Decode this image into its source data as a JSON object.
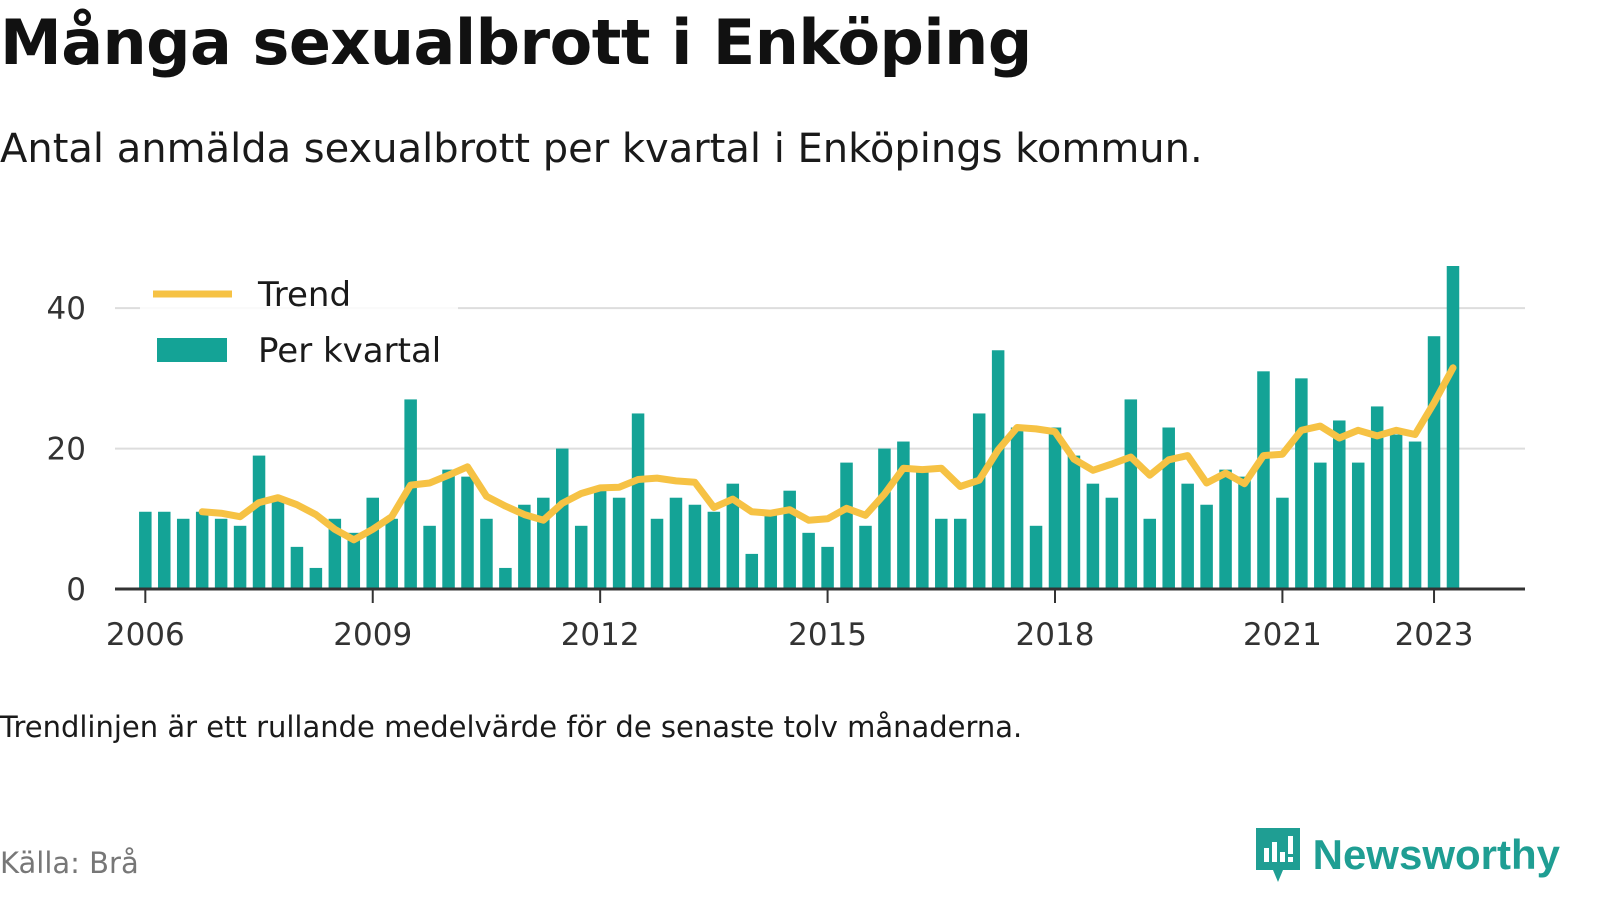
{
  "title": "Många sexualbrott i Enköping",
  "subtitle": "Antal anmälda sexualbrott per kvartal i Enköpings kommun.",
  "note": "Trendlinjen är ett rullande medelvärde för de senaste tolv månaderna.",
  "source": "Källa: Brå",
  "brand": {
    "name": "Newsworthy",
    "icon": "newsworthy-logo-icon",
    "color": "#1f9e93"
  },
  "colors": {
    "bars": "#14a396",
    "trend": "#f6c244",
    "grid": "#dddddd",
    "axis": "#333333",
    "tick_text": "#333333"
  },
  "chart_data": {
    "type": "bar",
    "x_unit": "year",
    "legend": {
      "placement": "top-left",
      "entries": [
        {
          "label": "Trend",
          "kind": "line"
        },
        {
          "label": "Per kvartal",
          "kind": "bar"
        }
      ]
    },
    "grid": true,
    "ylim": [
      0,
      46
    ],
    "y_ticks": [
      0,
      20,
      40
    ],
    "xlim": [
      2005.6,
      2024.2
    ],
    "x_ticks": [
      {
        "value": 2006,
        "label": "2006"
      },
      {
        "value": 2009,
        "label": "2009"
      },
      {
        "value": 2012,
        "label": "2012"
      },
      {
        "value": 2015,
        "label": "2015"
      },
      {
        "value": 2018,
        "label": "2018"
      },
      {
        "value": 2021,
        "label": "2021"
      },
      {
        "value": 2023,
        "label": "2023"
      }
    ],
    "start_year": 2006,
    "bar_series": {
      "name": "Per kvartal",
      "values": [
        11,
        11,
        10,
        11,
        10,
        9,
        19,
        13,
        6,
        3,
        10,
        8,
        13,
        10,
        27,
        9,
        17,
        16,
        10,
        3,
        12,
        13,
        20,
        9,
        14,
        13,
        25,
        10,
        13,
        12,
        11,
        15,
        5,
        11,
        14,
        8,
        6,
        18,
        9,
        20,
        21,
        17,
        10,
        10,
        25,
        34,
        23,
        9,
        23,
        19,
        15,
        13,
        27,
        10,
        23,
        15,
        12,
        17,
        16,
        31,
        13,
        30,
        18,
        24,
        18,
        26,
        22,
        21,
        36,
        46
      ]
    },
    "trend_series": {
      "name": "Trend",
      "values": [
        null,
        null,
        null,
        11.0,
        10.8,
        10.3,
        12.3,
        13.0,
        12.0,
        10.6,
        8.5,
        7.0,
        8.5,
        10.3,
        14.8,
        15.1,
        16.2,
        17.4,
        13.2,
        11.8,
        10.6,
        9.8,
        12.2,
        13.6,
        14.4,
        14.5,
        15.6,
        15.8,
        15.4,
        15.2,
        11.6,
        12.8,
        11.0,
        10.8,
        11.3,
        9.8,
        10.0,
        11.5,
        10.5,
        13.5,
        17.2,
        17.0,
        17.2,
        14.6,
        15.5,
        19.8,
        23.0,
        22.8,
        22.4,
        18.5,
        16.9,
        17.8,
        18.8,
        16.2,
        18.4,
        19.0,
        15.1,
        16.5,
        15.0,
        19.0,
        19.2,
        22.6,
        23.2,
        21.5,
        22.6,
        21.8,
        22.6,
        22.0,
        26.5,
        31.5
      ]
    }
  }
}
